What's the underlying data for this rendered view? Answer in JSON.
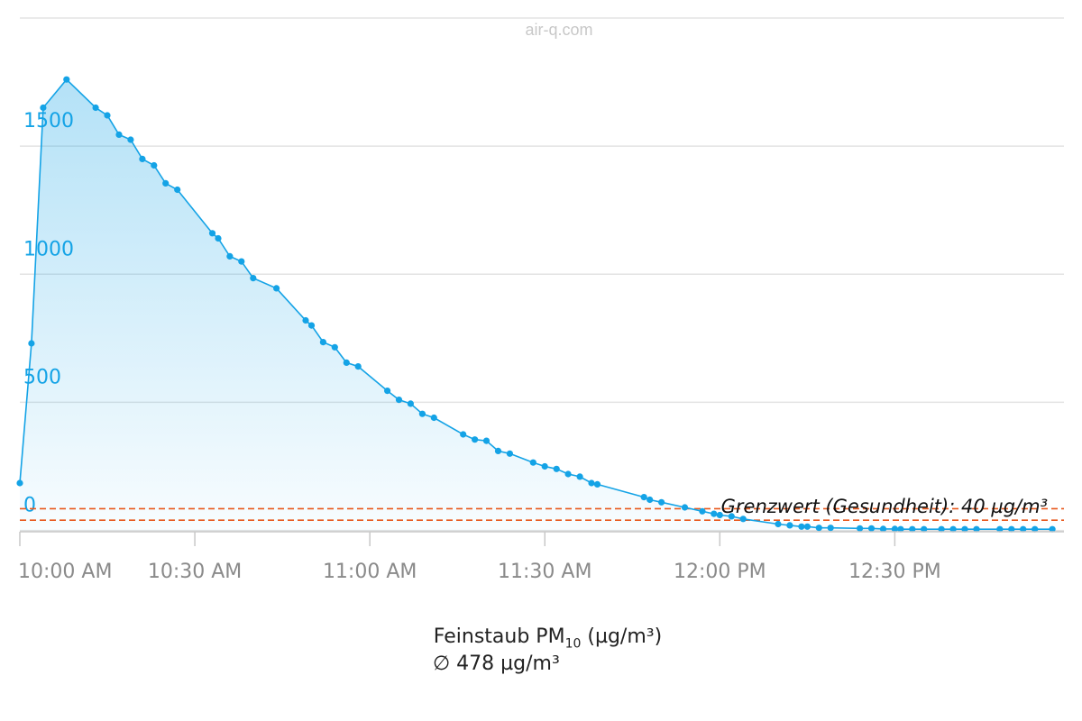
{
  "watermark": "air-q.com",
  "caption": {
    "title_prefix": "Feinstaub PM",
    "title_sub": "10",
    "title_suffix": " (µg/m³)",
    "average": "∅ 478 µg/m³"
  },
  "chart_data": {
    "type": "area",
    "title": "Feinstaub PM10 (µg/m³)",
    "xlabel": "",
    "ylabel": "",
    "x_ticks": [
      "10:00 AM",
      "10:30 AM",
      "11:00 AM",
      "11:30 AM",
      "12:00 PM",
      "12:30 PM"
    ],
    "y_ticks": [
      "0",
      "500",
      "1000",
      "1500"
    ],
    "ylim": [
      -5,
      2000
    ],
    "xlim": [
      "10:00",
      "12:59"
    ],
    "grid": true,
    "line_color": "#14a3e6",
    "fill_color": "#14a3e6",
    "limit_color": "#e8581c",
    "limit_line": {
      "label": "Grenzwert (Gesundheit): 40 µg/m³",
      "values": [
        40,
        85
      ]
    },
    "series": [
      {
        "x": [
          "10:00",
          "10:02",
          "10:04",
          "10:08",
          "10:13",
          "10:15",
          "10:17",
          "10:19",
          "10:21",
          "10:23",
          "10:25",
          "10:27",
          "10:33",
          "10:34",
          "10:36",
          "10:38",
          "10:40",
          "10:44",
          "10:49",
          "10:50",
          "10:52",
          "10:54",
          "10:56",
          "10:58",
          "11:03",
          "11:05",
          "11:07",
          "11:09",
          "11:11",
          "11:16",
          "11:18",
          "11:20",
          "11:22",
          "11:24",
          "11:28",
          "11:30",
          "11:32",
          "11:34",
          "11:36",
          "11:38",
          "11:39",
          "11:47",
          "11:48",
          "11:50",
          "11:54",
          "11:57",
          "11:59",
          "12:00",
          "12:02",
          "12:04",
          "12:10",
          "12:12",
          "12:14",
          "12:15",
          "12:17",
          "12:19",
          "12:24",
          "12:26",
          "12:28",
          "12:30",
          "12:31",
          "12:33",
          "12:35",
          "12:38",
          "12:40",
          "12:42",
          "12:44",
          "12:48",
          "12:50",
          "12:52",
          "12:54",
          "12:57"
        ],
        "y": [
          185,
          730,
          1650,
          1760,
          1650,
          1620,
          1545,
          1525,
          1450,
          1425,
          1355,
          1330,
          1160,
          1140,
          1070,
          1050,
          985,
          945,
          820,
          800,
          735,
          715,
          655,
          640,
          545,
          510,
          495,
          455,
          440,
          375,
          355,
          350,
          310,
          300,
          265,
          250,
          240,
          220,
          210,
          185,
          180,
          130,
          120,
          110,
          90,
          75,
          65,
          60,
          55,
          45,
          25,
          20,
          15,
          15,
          10,
          10,
          8,
          8,
          6,
          6,
          5,
          5,
          5,
          5,
          5,
          5,
          5,
          5,
          5,
          5,
          5,
          5
        ]
      }
    ]
  }
}
